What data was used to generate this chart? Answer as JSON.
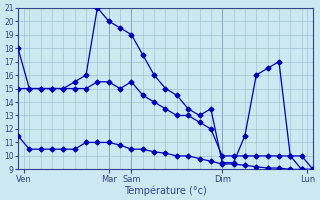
{
  "xlabel": "Température (°c)",
  "background_color": "#cce8f0",
  "line_color": "#0000bb",
  "grid_color": "#99bbcc",
  "spine_color": "#334488",
  "ylim": [
    9,
    21
  ],
  "yticks": [
    9,
    10,
    11,
    12,
    13,
    14,
    15,
    16,
    17,
    18,
    19,
    20,
    21
  ],
  "xlim": [
    0,
    26
  ],
  "major_xtick_positions": [
    0.5,
    8,
    10,
    18,
    25.5
  ],
  "major_xtick_labels": [
    "Ven",
    "Mar",
    "Sam",
    "Dim",
    "Lun"
  ],
  "vline_positions": [
    0,
    8,
    10,
    18,
    26
  ],
  "minor_xtick_positions": [
    0,
    1,
    2,
    3,
    4,
    5,
    6,
    7,
    8,
    9,
    10,
    11,
    12,
    13,
    14,
    15,
    16,
    17,
    18,
    19,
    20,
    21,
    22,
    23,
    24,
    25,
    26
  ],
  "line1_x": [
    0,
    1,
    2,
    3,
    4,
    5,
    6,
    7,
    8,
    9,
    10,
    11,
    12,
    13,
    14,
    15,
    16,
    17,
    18,
    19,
    20,
    21,
    22,
    23,
    24,
    25,
    26
  ],
  "line1_y": [
    18,
    15,
    15,
    15,
    15,
    15.5,
    16,
    21,
    20,
    19.5,
    19,
    17.5,
    16,
    15,
    14.5,
    13.5,
    13,
    13.5,
    9.5,
    9.5,
    11.5,
    16,
    16.5,
    17,
    10,
    10,
    9
  ],
  "line2_x": [
    0,
    1,
    2,
    3,
    4,
    5,
    6,
    7,
    8,
    9,
    10,
    11,
    12,
    13,
    14,
    15,
    16,
    17,
    18,
    19,
    20,
    21,
    22,
    23,
    24,
    25,
    26
  ],
  "line2_y": [
    15,
    15,
    15,
    15,
    15,
    15,
    15,
    15.5,
    15.5,
    15,
    15.5,
    14.5,
    14,
    13.5,
    13,
    13,
    12.5,
    12,
    10,
    10,
    10,
    10,
    10,
    10,
    10,
    9,
    9
  ],
  "line3_x": [
    0,
    1,
    2,
    3,
    4,
    5,
    6,
    7,
    8,
    9,
    10,
    11,
    12,
    13,
    14,
    15,
    16,
    17,
    18,
    19,
    20,
    21,
    22,
    23,
    24,
    25,
    26
  ],
  "line3_y": [
    11.5,
    10.5,
    10.5,
    10.5,
    10.5,
    10.5,
    11,
    11,
    11,
    10.8,
    10.5,
    10.5,
    10.3,
    10.2,
    10,
    10,
    9.8,
    9.6,
    9.4,
    9.4,
    9.3,
    9.2,
    9.1,
    9.1,
    9.0,
    9.0,
    9.0
  ]
}
